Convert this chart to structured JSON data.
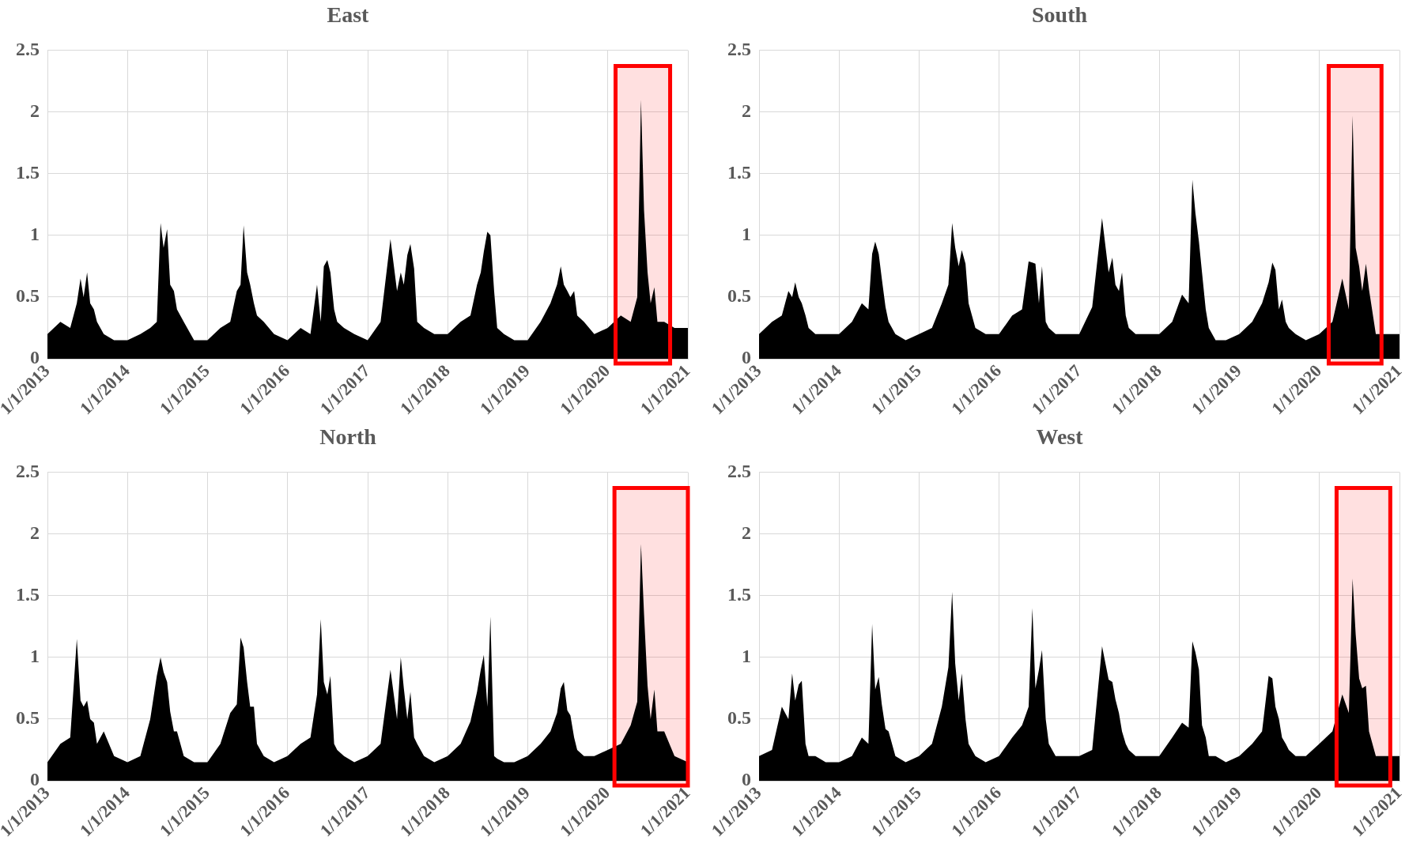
{
  "chart_data": [
    {
      "type": "area",
      "title": "East",
      "color": "#000000",
      "grid": true,
      "ylim": [
        0,
        2.5
      ],
      "yticks": [
        0,
        0.5,
        1,
        1.5,
        2,
        2.5
      ],
      "xlim": [
        "2013-01-01",
        "2021-01-01"
      ],
      "xticks": [
        {
          "value": "2013-01-01",
          "label": "1/1/2013"
        },
        {
          "value": "2014-01-01",
          "label": "1/1/2014"
        },
        {
          "value": "2015-01-01",
          "label": "1/1/2015"
        },
        {
          "value": "2016-01-01",
          "label": "1/1/2016"
        },
        {
          "value": "2017-01-01",
          "label": "1/1/2017"
        },
        {
          "value": "2018-01-01",
          "label": "1/1/2018"
        },
        {
          "value": "2019-01-01",
          "label": "1/1/2019"
        },
        {
          "value": "2020-01-01",
          "label": "1/1/2020"
        },
        {
          "value": "2021-01-01",
          "label": "1/1/2021"
        }
      ],
      "bands": [
        {
          "axis": "x",
          "from": "2020-02-06",
          "to": "2020-10-12",
          "color": "#ff0000"
        }
      ],
      "x": [
        "2013-01-01",
        "2013-03-01",
        "2013-04-15",
        "2013-05-15",
        "2013-06-01",
        "2013-06-15",
        "2013-07-01",
        "2013-07-15",
        "2013-08-01",
        "2013-08-15",
        "2013-09-15",
        "2013-11-01",
        "2014-01-01",
        "2014-03-01",
        "2014-04-15",
        "2014-05-15",
        "2014-06-01",
        "2014-06-15",
        "2014-07-01",
        "2014-07-15",
        "2014-08-01",
        "2014-08-15",
        "2014-09-15",
        "2014-11-01",
        "2015-01-01",
        "2015-03-01",
        "2015-04-15",
        "2015-05-15",
        "2015-06-01",
        "2015-06-15",
        "2015-07-01",
        "2015-07-15",
        "2015-08-01",
        "2015-08-15",
        "2015-09-15",
        "2015-11-01",
        "2016-01-01",
        "2016-03-01",
        "2016-04-15",
        "2016-05-15",
        "2016-06-01",
        "2016-06-15",
        "2016-07-01",
        "2016-07-15",
        "2016-08-01",
        "2016-08-15",
        "2016-09-15",
        "2016-11-01",
        "2017-01-01",
        "2017-03-01",
        "2017-04-15",
        "2017-05-15",
        "2017-06-01",
        "2017-06-15",
        "2017-07-01",
        "2017-07-15",
        "2017-08-01",
        "2017-08-15",
        "2017-09-15",
        "2017-11-01",
        "2018-01-01",
        "2018-03-01",
        "2018-04-15",
        "2018-05-15",
        "2018-06-01",
        "2018-06-15",
        "2018-07-01",
        "2018-07-15",
        "2018-08-01",
        "2018-08-15",
        "2018-09-15",
        "2018-11-01",
        "2019-01-01",
        "2019-03-01",
        "2019-04-15",
        "2019-05-15",
        "2019-06-01",
        "2019-06-15",
        "2019-07-01",
        "2019-07-15",
        "2019-08-01",
        "2019-08-15",
        "2019-09-15",
        "2019-11-01",
        "2020-01-01",
        "2020-03-01",
        "2020-04-15",
        "2020-05-15",
        "2020-06-01",
        "2020-06-15",
        "2020-07-01",
        "2020-07-15",
        "2020-08-01",
        "2020-08-15",
        "2020-09-15",
        "2020-11-01",
        "2021-01-01"
      ],
      "values": [
        0.2,
        0.3,
        0.25,
        0.45,
        0.65,
        0.5,
        0.7,
        0.45,
        0.4,
        0.3,
        0.2,
        0.15,
        0.15,
        0.2,
        0.25,
        0.3,
        1.1,
        0.9,
        1.05,
        0.6,
        0.55,
        0.4,
        0.3,
        0.15,
        0.15,
        0.25,
        0.3,
        0.55,
        0.6,
        1.08,
        0.7,
        0.6,
        0.45,
        0.35,
        0.3,
        0.2,
        0.15,
        0.25,
        0.2,
        0.6,
        0.3,
        0.75,
        0.8,
        0.7,
        0.4,
        0.3,
        0.25,
        0.2,
        0.15,
        0.3,
        0.97,
        0.55,
        0.7,
        0.6,
        0.84,
        0.93,
        0.73,
        0.3,
        0.25,
        0.2,
        0.2,
        0.3,
        0.35,
        0.6,
        0.7,
        0.87,
        1.03,
        1.0,
        0.55,
        0.25,
        0.2,
        0.15,
        0.15,
        0.3,
        0.45,
        0.6,
        0.75,
        0.6,
        0.55,
        0.5,
        0.55,
        0.35,
        0.3,
        0.2,
        0.25,
        0.35,
        0.3,
        0.5,
        2.1,
        1.2,
        0.7,
        0.45,
        0.58,
        0.3,
        0.3,
        0.25,
        0.25
      ]
    },
    {
      "type": "area",
      "title": "South",
      "color": "#000000",
      "grid": true,
      "ylim": [
        0,
        2.5
      ],
      "yticks": [
        0,
        0.5,
        1,
        1.5,
        2,
        2.5
      ],
      "xlim": [
        "2013-01-01",
        "2021-01-01"
      ],
      "xticks": [
        {
          "value": "2013-01-01",
          "label": "1/1/2013"
        },
        {
          "value": "2014-01-01",
          "label": "1/1/2014"
        },
        {
          "value": "2015-01-01",
          "label": "1/1/2015"
        },
        {
          "value": "2016-01-01",
          "label": "1/1/2016"
        },
        {
          "value": "2017-01-01",
          "label": "1/1/2017"
        },
        {
          "value": "2018-01-01",
          "label": "1/1/2018"
        },
        {
          "value": "2019-01-01",
          "label": "1/1/2019"
        },
        {
          "value": "2020-01-01",
          "label": "1/1/2020"
        },
        {
          "value": "2021-01-01",
          "label": "1/1/2021"
        }
      ],
      "bands": [
        {
          "axis": "x",
          "from": "2020-02-13",
          "to": "2020-10-11",
          "color": "#ff0000"
        }
      ],
      "x": [
        "2013-01-01",
        "2013-03-01",
        "2013-04-15",
        "2013-05-15",
        "2013-06-01",
        "2013-06-15",
        "2013-07-01",
        "2013-07-15",
        "2013-08-01",
        "2013-08-15",
        "2013-09-15",
        "2013-11-01",
        "2014-01-01",
        "2014-03-01",
        "2014-04-15",
        "2014-05-15",
        "2014-06-01",
        "2014-06-15",
        "2014-07-01",
        "2014-07-15",
        "2014-08-01",
        "2014-08-15",
        "2014-09-15",
        "2014-11-01",
        "2015-01-01",
        "2015-03-01",
        "2015-04-15",
        "2015-05-15",
        "2015-06-01",
        "2015-06-15",
        "2015-07-01",
        "2015-07-15",
        "2015-08-01",
        "2015-08-15",
        "2015-09-15",
        "2015-11-01",
        "2016-01-01",
        "2016-03-01",
        "2016-04-15",
        "2016-05-15",
        "2016-06-01",
        "2016-06-15",
        "2016-07-01",
        "2016-07-15",
        "2016-08-01",
        "2016-08-15",
        "2016-09-15",
        "2016-11-01",
        "2017-01-01",
        "2017-03-01",
        "2017-04-15",
        "2017-05-15",
        "2017-06-01",
        "2017-06-15",
        "2017-07-01",
        "2017-07-15",
        "2017-08-01",
        "2017-08-15",
        "2017-09-15",
        "2017-11-01",
        "2018-01-01",
        "2018-03-01",
        "2018-04-15",
        "2018-05-15",
        "2018-06-01",
        "2018-06-15",
        "2018-07-01",
        "2018-07-15",
        "2018-08-01",
        "2018-08-15",
        "2018-09-15",
        "2018-11-01",
        "2019-01-01",
        "2019-03-01",
        "2019-04-15",
        "2019-05-15",
        "2019-06-01",
        "2019-06-15",
        "2019-07-01",
        "2019-07-15",
        "2019-08-01",
        "2019-08-15",
        "2019-09-15",
        "2019-11-01",
        "2020-01-01",
        "2020-03-01",
        "2020-04-15",
        "2020-05-15",
        "2020-06-01",
        "2020-06-15",
        "2020-07-01",
        "2020-07-15",
        "2020-08-01",
        "2020-08-15",
        "2020-09-15",
        "2020-11-01",
        "2021-01-01"
      ],
      "values": [
        0.2,
        0.3,
        0.35,
        0.55,
        0.5,
        0.62,
        0.5,
        0.45,
        0.35,
        0.25,
        0.2,
        0.2,
        0.2,
        0.3,
        0.45,
        0.4,
        0.85,
        0.95,
        0.85,
        0.65,
        0.42,
        0.3,
        0.2,
        0.15,
        0.2,
        0.25,
        0.45,
        0.6,
        1.1,
        0.9,
        0.75,
        0.88,
        0.77,
        0.45,
        0.25,
        0.2,
        0.2,
        0.35,
        0.4,
        0.79,
        0.78,
        0.77,
        0.45,
        0.75,
        0.3,
        0.25,
        0.2,
        0.2,
        0.2,
        0.42,
        1.14,
        0.7,
        0.82,
        0.6,
        0.55,
        0.7,
        0.35,
        0.25,
        0.2,
        0.2,
        0.2,
        0.3,
        0.52,
        0.45,
        1.45,
        1.18,
        0.95,
        0.7,
        0.4,
        0.25,
        0.15,
        0.15,
        0.2,
        0.3,
        0.45,
        0.62,
        0.78,
        0.72,
        0.4,
        0.48,
        0.3,
        0.25,
        0.2,
        0.15,
        0.2,
        0.3,
        0.65,
        0.4,
        1.97,
        0.9,
        0.75,
        0.55,
        0.77,
        0.56,
        0.2,
        0.2,
        0.2
      ]
    },
    {
      "type": "area",
      "title": "North",
      "color": "#000000",
      "grid": true,
      "ylim": [
        0,
        2.5
      ],
      "yticks": [
        0,
        0.5,
        1,
        1.5,
        2,
        2.5
      ],
      "xlim": [
        "2013-01-01",
        "2021-01-01"
      ],
      "xticks": [
        {
          "value": "2013-01-01",
          "label": "1/1/2013"
        },
        {
          "value": "2014-01-01",
          "label": "1/1/2014"
        },
        {
          "value": "2015-01-01",
          "label": "1/1/2015"
        },
        {
          "value": "2016-01-01",
          "label": "1/1/2016"
        },
        {
          "value": "2017-01-01",
          "label": "1/1/2017"
        },
        {
          "value": "2018-01-01",
          "label": "1/1/2018"
        },
        {
          "value": "2019-01-01",
          "label": "1/1/2019"
        },
        {
          "value": "2020-01-01",
          "label": "1/1/2020"
        },
        {
          "value": "2021-01-01",
          "label": "1/1/2021"
        }
      ],
      "bands": [
        {
          "axis": "x",
          "from": "2020-02-01",
          "to": "2021-01-01",
          "color": "#ff0000"
        }
      ],
      "x": [
        "2013-01-01",
        "2013-03-01",
        "2013-04-15",
        "2013-05-15",
        "2013-06-01",
        "2013-06-15",
        "2013-07-01",
        "2013-07-15",
        "2013-08-01",
        "2013-08-15",
        "2013-09-15",
        "2013-11-01",
        "2014-01-01",
        "2014-03-01",
        "2014-04-15",
        "2014-05-15",
        "2014-06-01",
        "2014-06-15",
        "2014-07-01",
        "2014-07-15",
        "2014-08-01",
        "2014-08-15",
        "2014-09-15",
        "2014-11-01",
        "2015-01-01",
        "2015-03-01",
        "2015-04-15",
        "2015-05-15",
        "2015-06-01",
        "2015-06-15",
        "2015-07-01",
        "2015-07-15",
        "2015-08-01",
        "2015-08-15",
        "2015-09-15",
        "2015-11-01",
        "2016-01-01",
        "2016-03-01",
        "2016-04-15",
        "2016-05-15",
        "2016-06-01",
        "2016-06-15",
        "2016-07-01",
        "2016-07-15",
        "2016-08-01",
        "2016-08-15",
        "2016-09-15",
        "2016-11-01",
        "2017-01-01",
        "2017-03-01",
        "2017-04-15",
        "2017-05-15",
        "2017-06-01",
        "2017-06-15",
        "2017-07-01",
        "2017-07-15",
        "2017-08-01",
        "2017-08-15",
        "2017-09-15",
        "2017-11-01",
        "2018-01-01",
        "2018-03-01",
        "2018-04-15",
        "2018-05-15",
        "2018-06-01",
        "2018-06-15",
        "2018-07-01",
        "2018-07-15",
        "2018-08-01",
        "2018-08-15",
        "2018-09-15",
        "2018-11-01",
        "2019-01-01",
        "2019-03-01",
        "2019-04-15",
        "2019-05-15",
        "2019-06-01",
        "2019-06-15",
        "2019-07-01",
        "2019-07-15",
        "2019-08-01",
        "2019-08-15",
        "2019-09-15",
        "2019-11-01",
        "2020-01-01",
        "2020-03-01",
        "2020-04-15",
        "2020-05-15",
        "2020-06-01",
        "2020-06-15",
        "2020-07-01",
        "2020-07-15",
        "2020-08-01",
        "2020-08-15",
        "2020-09-15",
        "2020-11-01",
        "2021-01-01"
      ],
      "values": [
        0.15,
        0.3,
        0.35,
        1.15,
        0.65,
        0.6,
        0.65,
        0.5,
        0.47,
        0.3,
        0.4,
        0.2,
        0.15,
        0.2,
        0.5,
        0.85,
        1.0,
        0.88,
        0.8,
        0.56,
        0.4,
        0.4,
        0.2,
        0.15,
        0.15,
        0.3,
        0.55,
        0.62,
        1.16,
        1.08,
        0.8,
        0.6,
        0.6,
        0.3,
        0.2,
        0.15,
        0.2,
        0.3,
        0.35,
        0.7,
        1.31,
        0.8,
        0.7,
        0.85,
        0.3,
        0.25,
        0.2,
        0.15,
        0.2,
        0.3,
        0.9,
        0.5,
        1.0,
        0.75,
        0.5,
        0.72,
        0.35,
        0.3,
        0.2,
        0.15,
        0.2,
        0.3,
        0.48,
        0.72,
        0.9,
        1.02,
        0.6,
        1.33,
        0.2,
        0.18,
        0.15,
        0.15,
        0.2,
        0.3,
        0.4,
        0.55,
        0.75,
        0.8,
        0.57,
        0.53,
        0.35,
        0.25,
        0.2,
        0.2,
        0.25,
        0.3,
        0.45,
        0.64,
        1.92,
        1.35,
        0.77,
        0.5,
        0.74,
        0.4,
        0.4,
        0.2,
        0.15
      ]
    },
    {
      "type": "area",
      "title": "West",
      "color": "#000000",
      "grid": true,
      "ylim": [
        0,
        2.5
      ],
      "yticks": [
        0,
        0.5,
        1,
        1.5,
        2,
        2.5
      ],
      "xlim": [
        "2013-01-01",
        "2021-01-01"
      ],
      "xticks": [
        {
          "value": "2013-01-01",
          "label": "1/1/2013"
        },
        {
          "value": "2014-01-01",
          "label": "1/1/2014"
        },
        {
          "value": "2015-01-01",
          "label": "1/1/2015"
        },
        {
          "value": "2016-01-01",
          "label": "1/1/2016"
        },
        {
          "value": "2017-01-01",
          "label": "1/1/2017"
        },
        {
          "value": "2018-01-01",
          "label": "1/1/2018"
        },
        {
          "value": "2019-01-01",
          "label": "1/1/2019"
        },
        {
          "value": "2020-01-01",
          "label": "1/1/2020"
        },
        {
          "value": "2021-01-01",
          "label": "1/1/2021"
        }
      ],
      "bands": [
        {
          "axis": "x",
          "from": "2020-03-20",
          "to": "2020-11-20",
          "color": "#ff0000"
        }
      ],
      "x": [
        "2013-01-01",
        "2013-03-01",
        "2013-04-15",
        "2013-05-15",
        "2013-06-01",
        "2013-06-15",
        "2013-07-01",
        "2013-07-15",
        "2013-08-01",
        "2013-08-15",
        "2013-09-15",
        "2013-11-01",
        "2014-01-01",
        "2014-03-01",
        "2014-04-15",
        "2014-05-15",
        "2014-06-01",
        "2014-06-15",
        "2014-07-01",
        "2014-07-15",
        "2014-08-01",
        "2014-08-15",
        "2014-09-15",
        "2014-11-01",
        "2015-01-01",
        "2015-03-01",
        "2015-04-15",
        "2015-05-15",
        "2015-06-01",
        "2015-06-15",
        "2015-07-01",
        "2015-07-15",
        "2015-08-01",
        "2015-08-15",
        "2015-09-15",
        "2015-11-01",
        "2016-01-01",
        "2016-03-01",
        "2016-04-15",
        "2016-05-15",
        "2016-06-01",
        "2016-06-15",
        "2016-07-01",
        "2016-07-15",
        "2016-08-01",
        "2016-08-15",
        "2016-09-15",
        "2016-11-01",
        "2017-01-01",
        "2017-03-01",
        "2017-04-15",
        "2017-05-15",
        "2017-06-01",
        "2017-06-15",
        "2017-07-01",
        "2017-07-15",
        "2017-08-01",
        "2017-08-15",
        "2017-09-15",
        "2017-11-01",
        "2018-01-01",
        "2018-03-01",
        "2018-04-15",
        "2018-05-15",
        "2018-06-01",
        "2018-06-15",
        "2018-07-01",
        "2018-07-15",
        "2018-08-01",
        "2018-08-15",
        "2018-09-15",
        "2018-11-01",
        "2019-01-01",
        "2019-03-01",
        "2019-04-15",
        "2019-05-15",
        "2019-06-01",
        "2019-06-15",
        "2019-07-01",
        "2019-07-15",
        "2019-08-01",
        "2019-08-15",
        "2019-09-15",
        "2019-11-01",
        "2020-01-01",
        "2020-03-01",
        "2020-04-15",
        "2020-05-15",
        "2020-06-01",
        "2020-06-15",
        "2020-07-01",
        "2020-07-15",
        "2020-08-01",
        "2020-08-15",
        "2020-09-15",
        "2020-11-01",
        "2021-01-01"
      ],
      "values": [
        0.2,
        0.25,
        0.6,
        0.5,
        0.87,
        0.65,
        0.78,
        0.81,
        0.3,
        0.2,
        0.2,
        0.15,
        0.15,
        0.2,
        0.35,
        0.3,
        1.27,
        0.74,
        0.84,
        0.62,
        0.42,
        0.4,
        0.2,
        0.15,
        0.2,
        0.3,
        0.6,
        0.92,
        1.53,
        0.95,
        0.65,
        0.87,
        0.5,
        0.3,
        0.2,
        0.15,
        0.2,
        0.35,
        0.45,
        0.6,
        1.4,
        0.75,
        0.9,
        1.06,
        0.5,
        0.3,
        0.2,
        0.2,
        0.2,
        0.25,
        1.09,
        0.82,
        0.8,
        0.66,
        0.55,
        0.4,
        0.3,
        0.25,
        0.2,
        0.2,
        0.2,
        0.35,
        0.47,
        0.43,
        1.13,
        1.04,
        0.9,
        0.45,
        0.35,
        0.2,
        0.2,
        0.15,
        0.2,
        0.3,
        0.4,
        0.85,
        0.83,
        0.6,
        0.5,
        0.35,
        0.3,
        0.25,
        0.2,
        0.2,
        0.3,
        0.4,
        0.7,
        0.55,
        1.64,
        1.19,
        0.83,
        0.75,
        0.77,
        0.4,
        0.2,
        0.2,
        0.2
      ]
    }
  ]
}
